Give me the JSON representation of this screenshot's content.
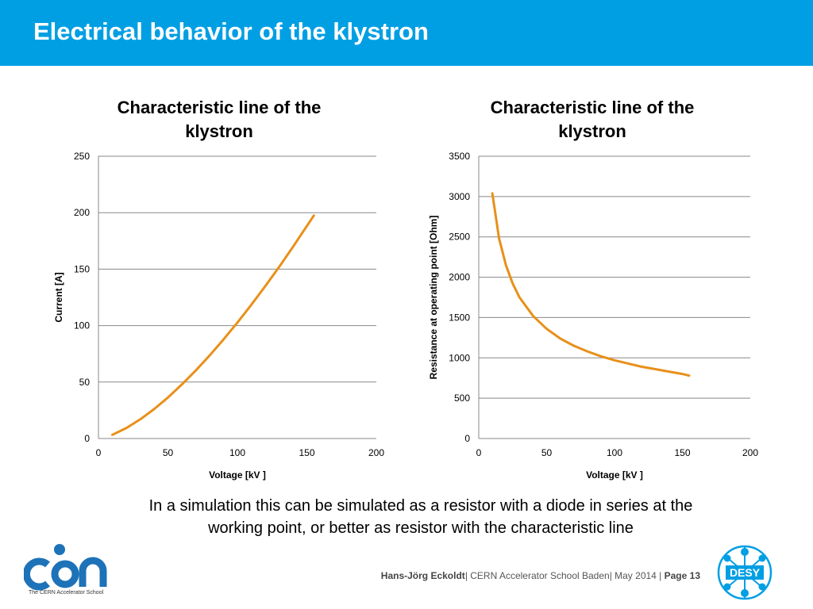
{
  "slide": {
    "title": "Electrical behavior of the klystron"
  },
  "colors": {
    "header": "#009fe3",
    "curve": "#e8901a",
    "grid": "#888888"
  },
  "chart_data": [
    {
      "type": "line",
      "title_lines": [
        "Characteristic line of the",
        "klystron"
      ],
      "xlabel": "Voltage [kV ]",
      "ylabel": "Current [A]",
      "xlim": [
        0,
        200
      ],
      "ylim": [
        0,
        250
      ],
      "xticks": [
        "0",
        "50",
        "100",
        "150",
        "200"
      ],
      "yticks": [
        "0",
        "50",
        "100",
        "150",
        "200",
        "250"
      ],
      "grid": "horizontal",
      "series": [
        {
          "x": [
            10,
            20,
            30,
            40,
            50,
            60,
            70,
            80,
            90,
            100,
            110,
            120,
            130,
            140,
            150,
            155
          ],
          "values": [
            3.3,
            9.2,
            16.9,
            26.0,
            36.3,
            47.8,
            60.2,
            73.5,
            87.7,
            102.7,
            118.4,
            134.8,
            151.9,
            169.7,
            188.1,
            197.5
          ]
        }
      ]
    },
    {
      "type": "line",
      "title_lines": [
        "Characteristic line of the",
        "klystron"
      ],
      "xlabel": "Voltage [kV ]",
      "ylabel": "Resistance at operating point [Ohm]",
      "xlim": [
        0,
        200
      ],
      "ylim": [
        0,
        3500
      ],
      "xticks": [
        "0",
        "50",
        "100",
        "150",
        "200"
      ],
      "yticks": [
        "0",
        "500",
        "1000",
        "1500",
        "2000",
        "2500",
        "3000",
        "3500"
      ],
      "grid": "horizontal",
      "series": [
        {
          "x": [
            10,
            15,
            20,
            25,
            30,
            40,
            50,
            60,
            70,
            80,
            90,
            100,
            110,
            120,
            130,
            140,
            150,
            155
          ],
          "values": [
            3040,
            2480,
            2150,
            1920,
            1750,
            1520,
            1360,
            1240,
            1150,
            1080,
            1020,
            970,
            930,
            890,
            860,
            830,
            800,
            780
          ]
        }
      ]
    }
  ],
  "caption": {
    "line1": "In a simulation this can be simulated as a resistor with a diode in series at the",
    "line2": "working point, or better as resistor with the characteristic line"
  },
  "footer": {
    "author": "Hans-Jörg Eckoldt",
    "school": "|  CERN Accelerator School Baden|  May 2014  |  ",
    "page": "Page 13"
  },
  "logos": {
    "cas_caption": "The CERN Accelerator School",
    "desy_text": "DESY"
  }
}
